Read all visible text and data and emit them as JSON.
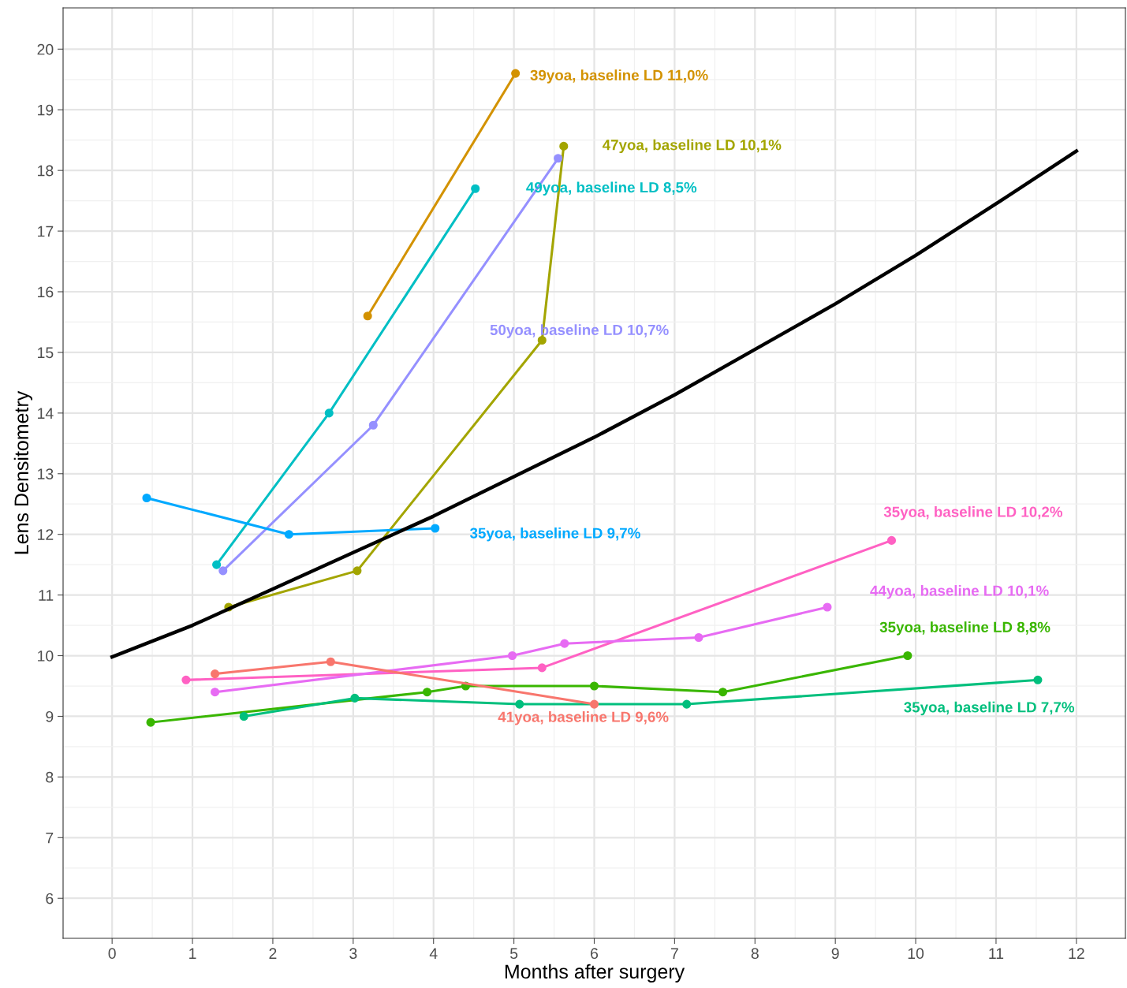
{
  "chart_data": {
    "type": "line",
    "xlabel": "Months after surgery",
    "ylabel": "Lens Densitometry",
    "xlim": [
      -0.61,
      12.61
    ],
    "ylim": [
      5.34,
      20.68
    ],
    "xticks": [
      0,
      1,
      2,
      3,
      4,
      5,
      6,
      7,
      8,
      9,
      10,
      11,
      12
    ],
    "yticks": [
      6,
      7,
      8,
      9,
      10,
      11,
      12,
      13,
      14,
      15,
      16,
      17,
      18,
      19,
      20
    ],
    "grid": true,
    "marker": "circle",
    "line_style": "solid",
    "legend": false,
    "series": [
      {
        "name": "39yoa, baseline LD 11,0%",
        "color": "#d39200",
        "x": [
          3.18,
          5.02
        ],
        "values": [
          15.6,
          19.6
        ]
      },
      {
        "name": "47yoa, baseline LD 10,1%",
        "color": "#a3a500",
        "x": [
          1.45,
          3.05,
          5.35,
          5.62
        ],
        "values": [
          10.8,
          11.4,
          15.2,
          18.4
        ]
      },
      {
        "name": "49yoa, baseline LD 8,5%",
        "color": "#00bfc4",
        "x": [
          1.3,
          2.7,
          4.52
        ],
        "values": [
          11.5,
          14.0,
          17.7
        ]
      },
      {
        "name": "50yoa, baseline LD 10,7%",
        "color": "#9590ff",
        "x": [
          1.38,
          3.25,
          5.55
        ],
        "values": [
          11.4,
          13.8,
          18.2
        ]
      },
      {
        "name": "35yoa, baseline LD 9,7%",
        "color": "#00a9ff",
        "x": [
          0.43,
          2.2,
          4.02
        ],
        "values": [
          12.6,
          12.0,
          12.1
        ]
      },
      {
        "name": "35yoa, baseline LD 10,2%",
        "color": "#ff61c3",
        "x": [
          0.92,
          5.35,
          9.7
        ],
        "values": [
          9.6,
          9.8,
          11.9
        ]
      },
      {
        "name": "44yoa, baseline LD 10,1%",
        "color": "#e76bf3",
        "x": [
          1.28,
          4.98,
          5.63,
          7.3,
          8.9
        ],
        "values": [
          9.4,
          10.0,
          10.2,
          10.3,
          10.8
        ]
      },
      {
        "name": "35yoa, baseline LD 8,8%",
        "color": "#39b600",
        "x": [
          0.48,
          3.92,
          4.4,
          6.0,
          7.6,
          9.9
        ],
        "values": [
          8.9,
          9.4,
          9.5,
          9.5,
          9.4,
          10.0
        ]
      },
      {
        "name": "35yoa, baseline LD 7,7%",
        "color": "#00bf7d",
        "x": [
          1.64,
          3.02,
          5.07,
          7.15,
          11.52
        ],
        "values": [
          9.0,
          9.3,
          9.2,
          9.2,
          9.6
        ]
      },
      {
        "name": "41yoa, baseline LD 9,6%",
        "color": "#f8766d",
        "x": [
          1.28,
          2.72,
          6.0
        ],
        "values": [
          9.7,
          9.9,
          9.2
        ]
      },
      {
        "color": "#000000",
        "marker": "none",
        "x": [
          0,
          1,
          2,
          3,
          4,
          5,
          6,
          7,
          8,
          9,
          10,
          11,
          12
        ],
        "values": [
          9.98,
          10.5,
          11.1,
          11.7,
          12.3,
          12.95,
          13.6,
          14.3,
          15.05,
          15.8,
          16.6,
          17.45,
          18.32
        ]
      }
    ]
  }
}
